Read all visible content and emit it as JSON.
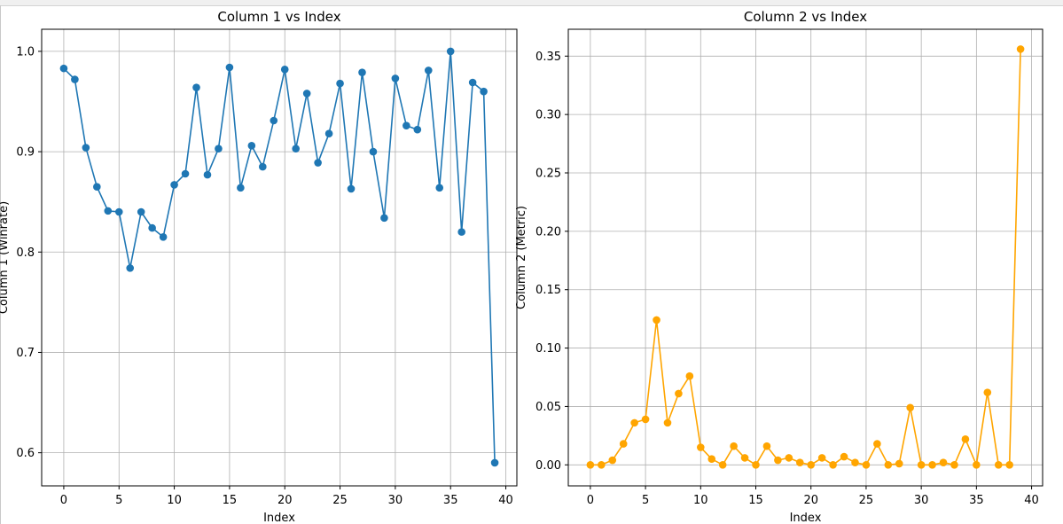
{
  "chart_data": [
    {
      "type": "line",
      "title": "Column 1 vs Index",
      "xlabel": "Index",
      "ylabel": "Column 1 (Winrate)",
      "xlim": [
        -2,
        41
      ],
      "ylim": [
        0.567,
        1.022
      ],
      "xticks": [
        0,
        5,
        10,
        15,
        20,
        25,
        30,
        35,
        40
      ],
      "xtick_labels": [
        "0",
        "5",
        "10",
        "15",
        "20",
        "25",
        "30",
        "35",
        "40"
      ],
      "yticks": [
        0.6,
        0.7,
        0.8,
        0.9,
        1.0
      ],
      "ytick_labels": [
        "0.6",
        "0.7",
        "0.8",
        "0.9",
        "1.0"
      ],
      "grid": true,
      "markers": true,
      "series": [
        {
          "color": "#1f77b4",
          "x": [
            0,
            1,
            2,
            3,
            4,
            5,
            6,
            7,
            8,
            9,
            10,
            11,
            12,
            13,
            14,
            15,
            16,
            17,
            18,
            19,
            20,
            21,
            22,
            23,
            24,
            25,
            26,
            27,
            28,
            29,
            30,
            31,
            32,
            33,
            34,
            35,
            36,
            37,
            38,
            39
          ],
          "values": [
            0.983,
            0.972,
            0.904,
            0.865,
            0.841,
            0.84,
            0.784,
            0.84,
            0.824,
            0.815,
            0.867,
            0.878,
            0.964,
            0.877,
            0.903,
            0.984,
            0.864,
            0.906,
            0.885,
            0.931,
            0.982,
            0.903,
            0.958,
            0.889,
            0.918,
            0.968,
            0.863,
            0.979,
            0.9,
            0.834,
            0.973,
            0.926,
            0.922,
            0.981,
            0.864,
            1.0,
            0.82,
            0.969,
            0.96,
            0.59
          ]
        }
      ]
    },
    {
      "type": "line",
      "title": "Column 2 vs Index",
      "xlabel": "Index",
      "ylabel": "Column 2 (Metric)",
      "xlim": [
        -2,
        41
      ],
      "ylim": [
        -0.018,
        0.373
      ],
      "xticks": [
        0,
        5,
        10,
        15,
        20,
        25,
        30,
        35,
        40
      ],
      "xtick_labels": [
        "0",
        "5",
        "10",
        "15",
        "20",
        "25",
        "30",
        "35",
        "40"
      ],
      "yticks": [
        0.0,
        0.05,
        0.1,
        0.15,
        0.2,
        0.25,
        0.3,
        0.35
      ],
      "ytick_labels": [
        "0.00",
        "0.05",
        "0.10",
        "0.15",
        "0.20",
        "0.25",
        "0.30",
        "0.35"
      ],
      "grid": true,
      "markers": true,
      "series": [
        {
          "color": "#ffa500",
          "x": [
            0,
            1,
            2,
            3,
            4,
            5,
            6,
            7,
            8,
            9,
            10,
            11,
            12,
            13,
            14,
            15,
            16,
            17,
            18,
            19,
            20,
            21,
            22,
            23,
            24,
            25,
            26,
            27,
            28,
            29,
            30,
            31,
            32,
            33,
            34,
            35,
            36,
            37,
            38,
            39
          ],
          "values": [
            0.0,
            0.0,
            0.004,
            0.018,
            0.036,
            0.039,
            0.124,
            0.036,
            0.061,
            0.076,
            0.015,
            0.005,
            0.0,
            0.016,
            0.006,
            0.0,
            0.016,
            0.004,
            0.006,
            0.002,
            0.0,
            0.006,
            0.0,
            0.007,
            0.002,
            0.0,
            0.018,
            0.0,
            0.001,
            0.049,
            0.0,
            0.0,
            0.002,
            0.0,
            0.022,
            0.0,
            0.062,
            0.0,
            0.0,
            0.356
          ]
        }
      ]
    }
  ]
}
